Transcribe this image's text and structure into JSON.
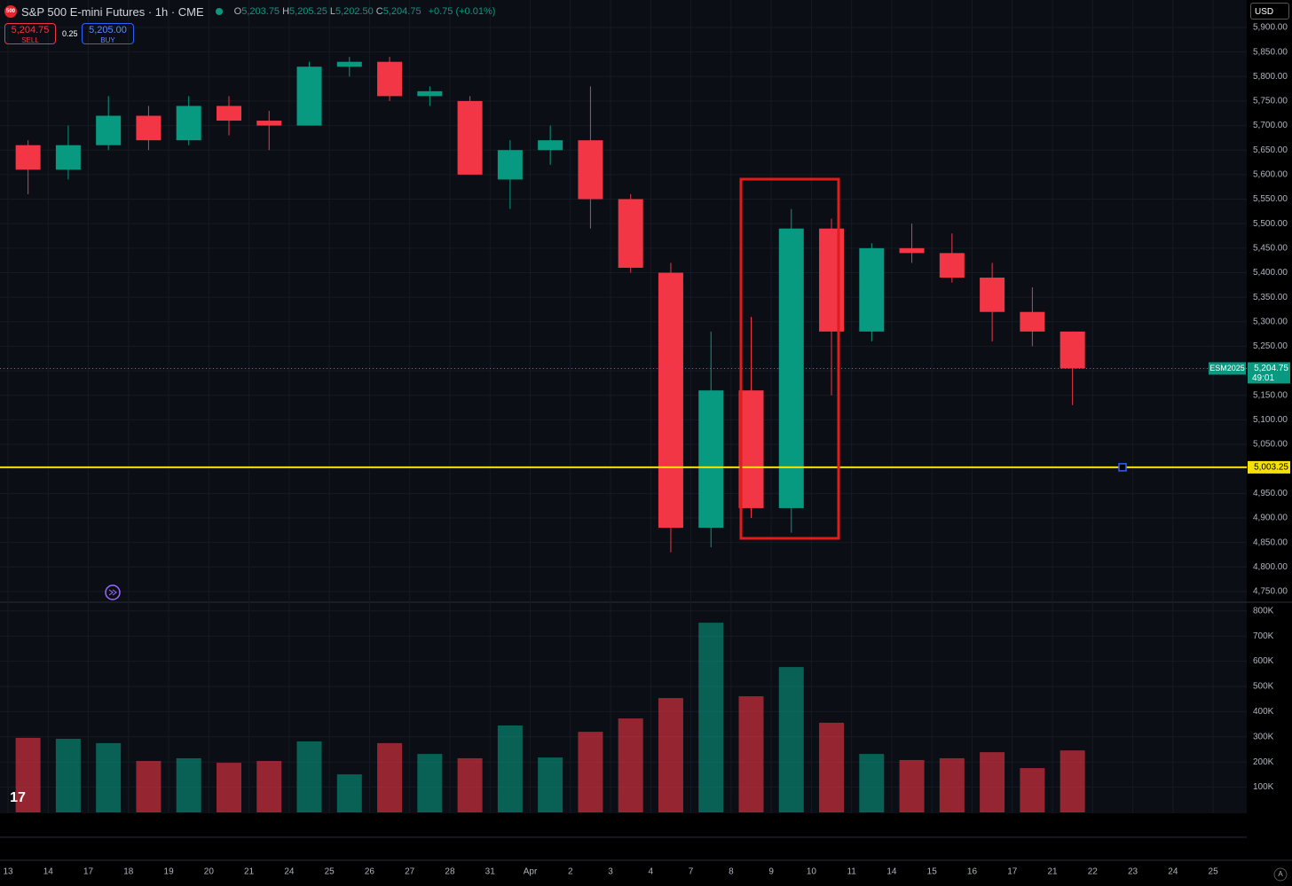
{
  "header": {
    "symbol_badge": "500",
    "title": "S&P 500 E-mini Futures · 1h · CME",
    "ohlc": [
      {
        "key": "O",
        "value": "5,203.75"
      },
      {
        "key": "H",
        "value": "5,205.25"
      },
      {
        "key": "L",
        "value": "5,202.50"
      },
      {
        "key": "C",
        "value": "5,204.75"
      }
    ],
    "change": "+0.75 (+0.01%)",
    "sell": {
      "price": "5,204.75",
      "label": "SELL"
    },
    "spread": "0.25",
    "buy": {
      "price": "5,205.00",
      "label": "BUY"
    },
    "currency": "USD"
  },
  "chart_data": {
    "type": "candlestick",
    "categories": [
      "13",
      "14",
      "17",
      "18",
      "19",
      "20",
      "21",
      "24",
      "25",
      "26",
      "27",
      "28",
      "31",
      "Apr",
      "2",
      "3",
      "4",
      "7",
      "8",
      "9",
      "10",
      "11",
      "14",
      "15",
      "16",
      "17",
      "21",
      "22",
      "23",
      "24",
      "25"
    ],
    "open": [
      5660,
      5610,
      5660,
      5720,
      5670,
      5740,
      5710,
      5700,
      5820,
      5830,
      5760,
      5750,
      5590,
      5650,
      5670,
      5550,
      5400,
      4880,
      5160,
      4920,
      5490,
      5280,
      5450,
      5440,
      5390,
      5320,
      5280,
      null,
      null,
      null,
      null
    ],
    "high": [
      5670,
      5700,
      5760,
      5740,
      5760,
      5760,
      5730,
      5830,
      5840,
      5840,
      5780,
      5760,
      5670,
      5700,
      5780,
      5560,
      5420,
      5280,
      5310,
      5530,
      5510,
      5460,
      5500,
      5480,
      5420,
      5370,
      5280,
      null,
      null,
      null,
      null
    ],
    "low": [
      5560,
      5590,
      5650,
      5650,
      5660,
      5680,
      5650,
      5700,
      5800,
      5750,
      5740,
      5600,
      5530,
      5620,
      5490,
      5400,
      4830,
      4840,
      4900,
      4870,
      5150,
      5260,
      5420,
      5380,
      5260,
      5250,
      5130,
      null,
      null,
      null,
      null
    ],
    "close": [
      5610,
      5660,
      5720,
      5670,
      5740,
      5710,
      5700,
      5820,
      5830,
      5760,
      5770,
      5600,
      5650,
      5670,
      5550,
      5410,
      4880,
      5160,
      4920,
      5490,
      5280,
      5450,
      5440,
      5390,
      5320,
      5280,
      5204.75,
      null,
      null,
      null,
      null
    ],
    "up_color": "#089981",
    "down_color": "#f23645",
    "ylim": [
      4730,
      5956
    ],
    "yticks": [
      {
        "value": 4750,
        "label": "4,750.00"
      },
      {
        "value": 4800,
        "label": "4,800.00"
      },
      {
        "value": 4850,
        "label": "4,850.00"
      },
      {
        "value": 4900,
        "label": "4,900.00"
      },
      {
        "value": 4950,
        "label": "4,950.00"
      },
      {
        "value": 5000,
        "label": "5,000.00"
      },
      {
        "value": 5050,
        "label": "5,050.00"
      },
      {
        "value": 5100,
        "label": "5,100.00"
      },
      {
        "value": 5150,
        "label": "5,150.00"
      },
      {
        "value": 5200,
        "label": "5,200.00"
      },
      {
        "value": 5250,
        "label": "5,250.00"
      },
      {
        "value": 5300,
        "label": "5,300.00"
      },
      {
        "value": 5350,
        "label": "5,350.00"
      },
      {
        "value": 5400,
        "label": "5,400.00"
      },
      {
        "value": 5450,
        "label": "5,450.00"
      },
      {
        "value": 5500,
        "label": "5,500.00"
      },
      {
        "value": 5550,
        "label": "5,550.00"
      },
      {
        "value": 5600,
        "label": "5,600.00"
      },
      {
        "value": 5650,
        "label": "5,650.00"
      },
      {
        "value": 5700,
        "label": "5,700.00"
      },
      {
        "value": 5750,
        "label": "5,750.00"
      },
      {
        "value": 5800,
        "label": "5,800.00"
      },
      {
        "value": 5850,
        "label": "5,850.00"
      },
      {
        "value": 5900,
        "label": "5,900.00"
      }
    ],
    "grid": true,
    "last_price": {
      "symbol": "ESM2025",
      "value": 5204.75,
      "label": "5,204.75",
      "countdown": "49:01",
      "color": "#089981"
    },
    "horizontal_line": {
      "value": 5003.25,
      "label": "5,003.25",
      "color": "#f5e10a"
    },
    "volume": {
      "values": [
        296000,
        292000,
        275000,
        204000,
        215000,
        197000,
        204000,
        282000,
        151000,
        275000,
        232000,
        215000,
        345000,
        218000,
        320000,
        373000,
        454000,
        753000,
        461000,
        577000,
        356000,
        232000,
        208000,
        215000,
        239000,
        176000,
        246000,
        null,
        null,
        null,
        null
      ],
      "ylim": [
        0,
        831000
      ],
      "yticks": [
        {
          "value": 100000,
          "label": "100K"
        },
        {
          "value": 200000,
          "label": "200K"
        },
        {
          "value": 300000,
          "label": "300K"
        },
        {
          "value": 400000,
          "label": "400K"
        },
        {
          "value": 500000,
          "label": "500K"
        },
        {
          "value": 600000,
          "label": "600K"
        },
        {
          "value": 700000,
          "label": "700K"
        },
        {
          "value": 800000,
          "label": "800K"
        }
      ]
    }
  },
  "footer": {
    "auto_button": "A",
    "logo": "17"
  }
}
